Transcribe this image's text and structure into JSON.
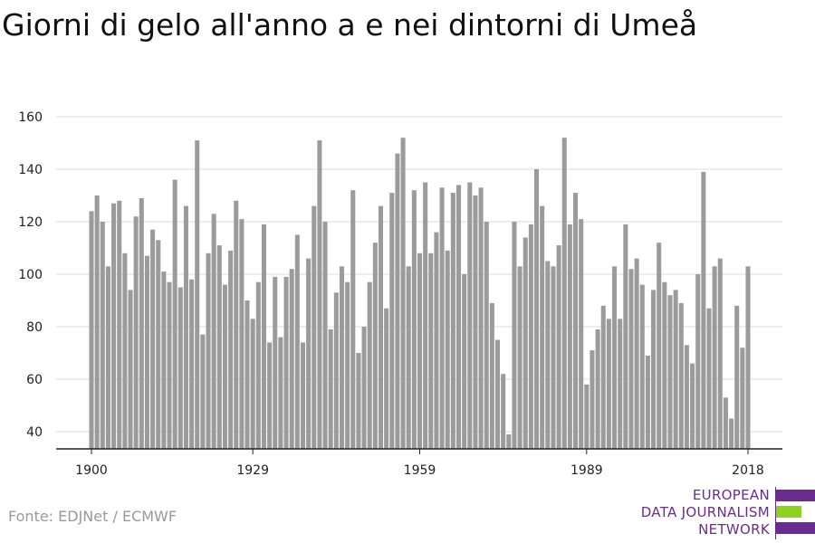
{
  "title": "Giorni di gelo all'anno a e nei dintorni di Umeå",
  "source": "Fonte: EDJNet / ECMWF",
  "logo": {
    "lines": [
      "EUROPEAN",
      "DATA JOURNALISM",
      "NETWORK"
    ],
    "colors": {
      "purple": "#6a2d8f",
      "green": "#8fd11f"
    }
  },
  "chart_data": {
    "type": "bar",
    "xlabel": "",
    "ylabel": "",
    "x_ticks": [
      1900,
      1929,
      1959,
      1989,
      2018
    ],
    "y_ticks": [
      40,
      60,
      80,
      100,
      120,
      140,
      160
    ],
    "ylim": [
      33,
      165
    ],
    "xlim": [
      1899,
      2018
    ],
    "grid": true,
    "bar_color": "#9b9b9b",
    "x": [
      1900,
      1901,
      1902,
      1903,
      1904,
      1905,
      1906,
      1907,
      1908,
      1909,
      1910,
      1911,
      1912,
      1913,
      1914,
      1915,
      1916,
      1917,
      1918,
      1919,
      1920,
      1921,
      1922,
      1923,
      1924,
      1925,
      1926,
      1927,
      1928,
      1929,
      1930,
      1931,
      1932,
      1933,
      1934,
      1935,
      1936,
      1937,
      1938,
      1939,
      1940,
      1941,
      1942,
      1943,
      1944,
      1945,
      1946,
      1947,
      1948,
      1949,
      1950,
      1951,
      1952,
      1953,
      1954,
      1955,
      1956,
      1957,
      1958,
      1959,
      1960,
      1961,
      1962,
      1963,
      1964,
      1965,
      1966,
      1967,
      1968,
      1969,
      1970,
      1971,
      1972,
      1973,
      1974,
      1975,
      1976,
      1977,
      1978,
      1979,
      1980,
      1981,
      1982,
      1983,
      1984,
      1985,
      1986,
      1987,
      1988,
      1989,
      1990,
      1991,
      1992,
      1993,
      1994,
      1995,
      1996,
      1997,
      1998,
      1999,
      2000,
      2001,
      2002,
      2003,
      2004,
      2005,
      2006,
      2007,
      2008,
      2009,
      2010,
      2011,
      2012,
      2013,
      2014,
      2015,
      2016,
      2017,
      2018
    ],
    "values": [
      124,
      130,
      120,
      103,
      127,
      128,
      108,
      94,
      122,
      129,
      107,
      117,
      113,
      101,
      97,
      136,
      95,
      126,
      98,
      151,
      77,
      108,
      123,
      111,
      96,
      109,
      128,
      121,
      90,
      83,
      97,
      119,
      74,
      99,
      76,
      99,
      102,
      115,
      74,
      106,
      126,
      151,
      120,
      79,
      93,
      103,
      97,
      132,
      70,
      80,
      97,
      112,
      126,
      87,
      131,
      146,
      152,
      103,
      132,
      108,
      135,
      108,
      116,
      133,
      109,
      131,
      134,
      100,
      135,
      130,
      133,
      120,
      89,
      75,
      62,
      39,
      120,
      103,
      114,
      119,
      140,
      126,
      105,
      103,
      111,
      152,
      119,
      131,
      121,
      58,
      71,
      79,
      88,
      83,
      103,
      83,
      119,
      102,
      106,
      96,
      69,
      94,
      112,
      97,
      92,
      94,
      89,
      73,
      66,
      100,
      139,
      87,
      103,
      106,
      53,
      45,
      88,
      72,
      103
    ]
  }
}
